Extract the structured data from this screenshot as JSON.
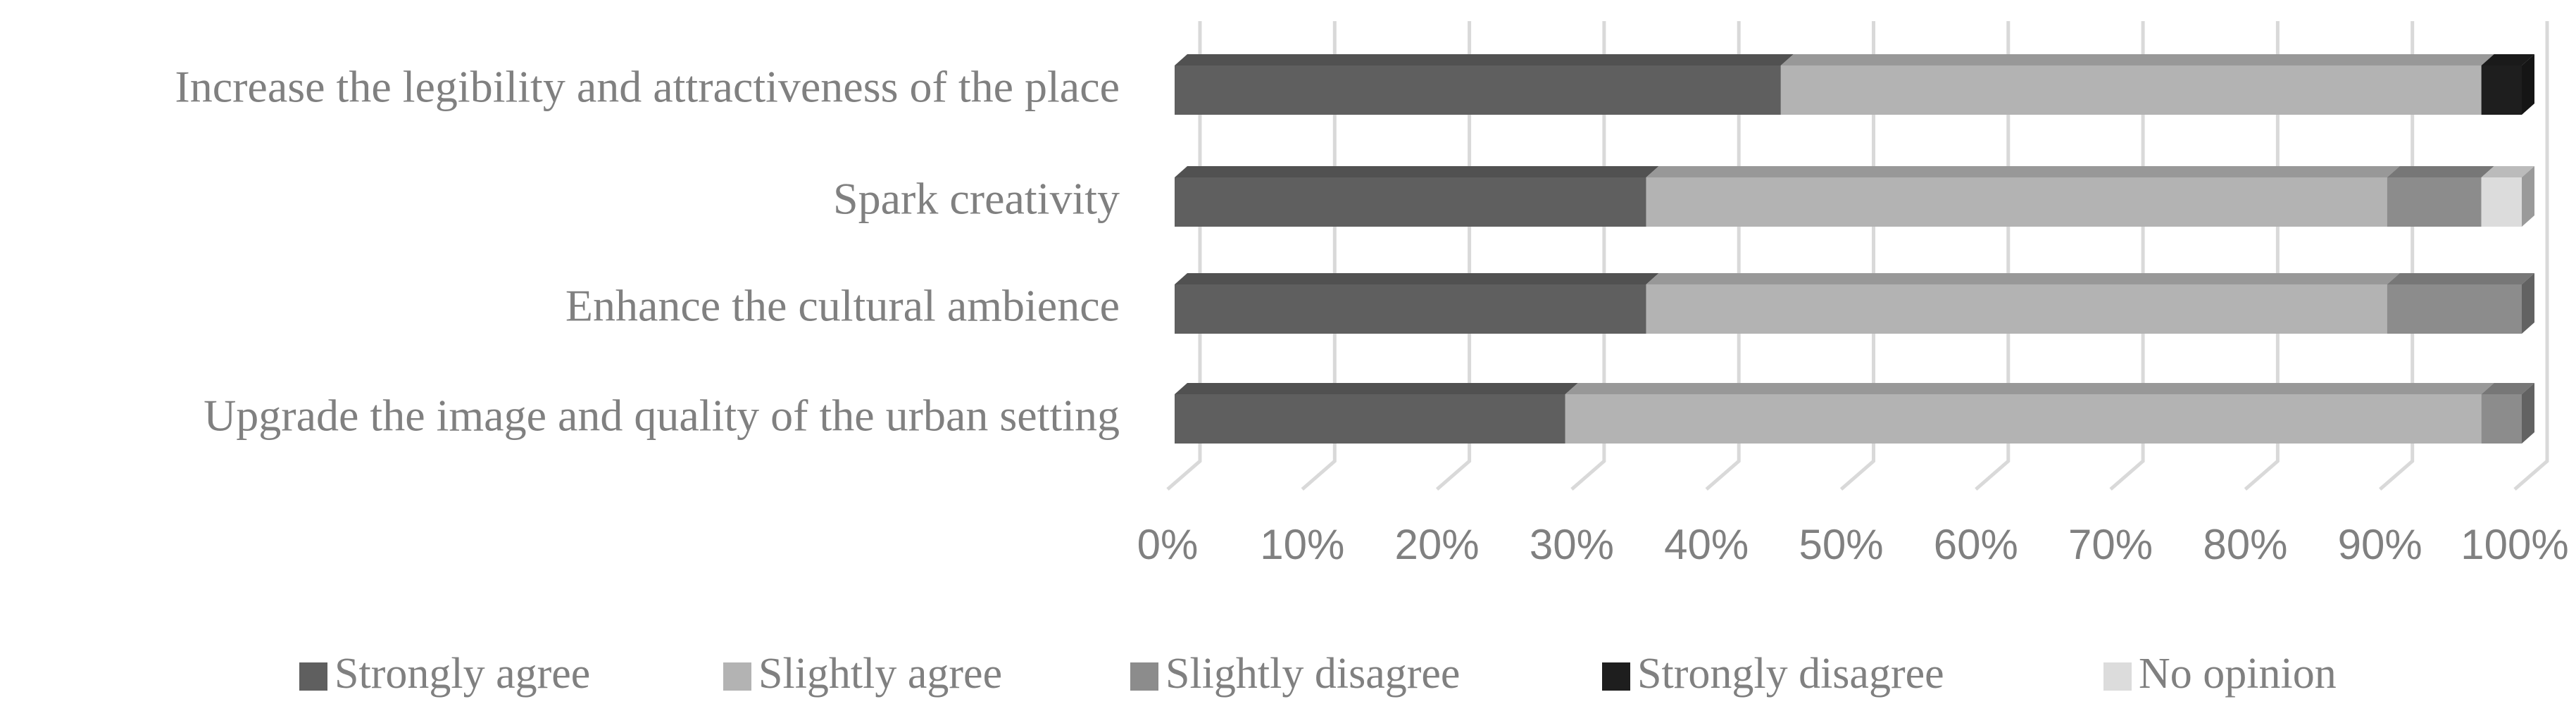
{
  "chart_data": {
    "type": "stacked-bar-horizontal",
    "categories": [
      "Increase the legibility and attractiveness of the place",
      "Spark creativity",
      "Enhance the cultural ambience",
      "Upgrade the image and quality of the urban setting"
    ],
    "series": [
      {
        "name": "Strongly agree",
        "color": "#5f5f5f",
        "values": [
          45,
          35,
          35,
          29
        ]
      },
      {
        "name": "Slightly agree",
        "color": "#b3b3b3",
        "values": [
          52,
          55,
          55,
          68
        ]
      },
      {
        "name": "Slightly disagree",
        "color": "#8c8c8c",
        "values": [
          0,
          7,
          10,
          3
        ]
      },
      {
        "name": "Strongly disagree",
        "color": "#1e1e1e",
        "values": [
          3,
          0,
          0,
          0
        ]
      },
      {
        "name": "No opinion",
        "color": "#dcdcdc",
        "values": [
          0,
          3,
          0,
          0
        ]
      }
    ],
    "xlim": [
      0,
      100
    ],
    "xticks": [
      {
        "value": 0,
        "label": "0%"
      },
      {
        "value": 10,
        "label": "10%"
      },
      {
        "value": 20,
        "label": "20%"
      },
      {
        "value": 30,
        "label": "30%"
      },
      {
        "value": 40,
        "label": "40%"
      },
      {
        "value": 50,
        "label": "50%"
      },
      {
        "value": 60,
        "label": "60%"
      },
      {
        "value": 70,
        "label": "70%"
      },
      {
        "value": 80,
        "label": "80%"
      },
      {
        "value": 90,
        "label": "90%"
      },
      {
        "value": 100,
        "label": "100%"
      }
    ],
    "grid": true,
    "legend": "bottom"
  }
}
